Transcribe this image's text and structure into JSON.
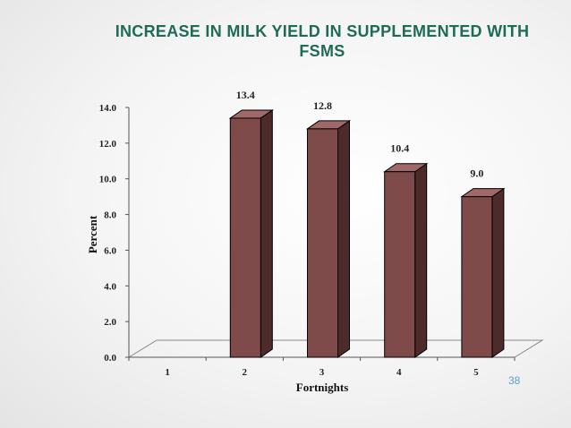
{
  "slide": {
    "title": "INCREASE IN MILK YIELD IN SUPPLEMENTED WITH FSMS",
    "number": "38"
  },
  "colors": {
    "title": "#1f6b57",
    "bar_front": "#7e4a4a",
    "bar_side": "#4e2b2b",
    "bar_top": "#a06868",
    "slide_number": "#5aa0c8"
  },
  "chart_data": {
    "type": "bar",
    "style": "3d-column",
    "title": "",
    "xlabel": "Fortnights",
    "ylabel": "Percent",
    "categories": [
      "1",
      "2",
      "3",
      "4",
      "5"
    ],
    "values": [
      null,
      13.4,
      12.8,
      10.4,
      9.0
    ],
    "value_labels": [
      "",
      "13.4",
      "12.8",
      "10.4",
      "9.0"
    ],
    "yticks": [
      "0.0",
      "2.0",
      "4.0",
      "6.0",
      "8.0",
      "10.0",
      "12.0",
      "14.0"
    ],
    "ylim": [
      0,
      14
    ],
    "grid": false,
    "legend": "none"
  }
}
